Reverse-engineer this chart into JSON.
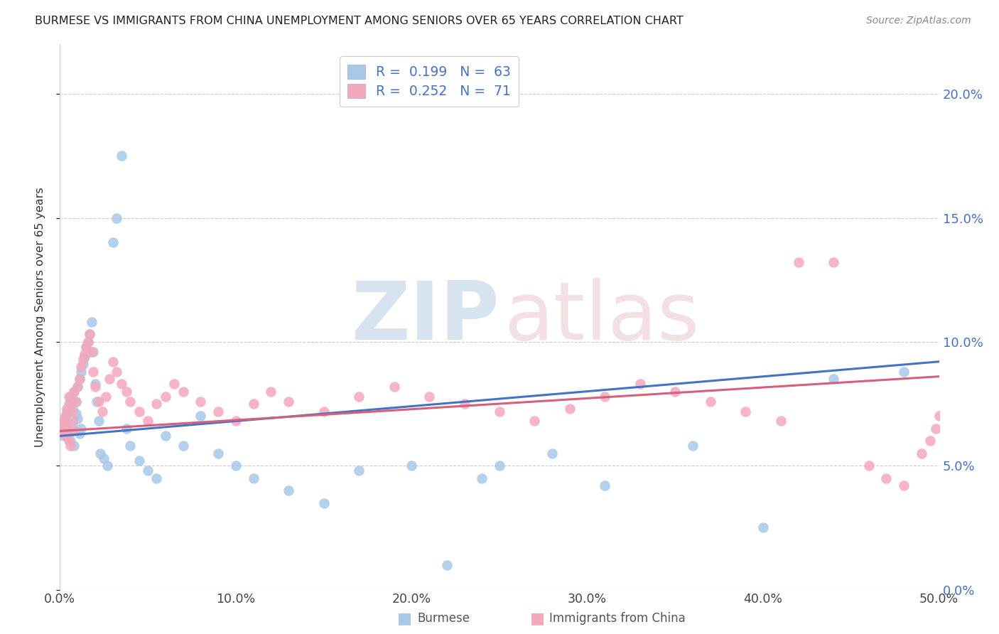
{
  "title": "BURMESE VS IMMIGRANTS FROM CHINA UNEMPLOYMENT AMONG SENIORS OVER 65 YEARS CORRELATION CHART",
  "source": "Source: ZipAtlas.com",
  "ylabel": "Unemployment Among Seniors over 65 years",
  "xmin": 0.0,
  "xmax": 0.5,
  "ymin": 0.0,
  "ymax": 0.22,
  "burmese_color": "#a8c8e8",
  "china_color": "#f4a8bc",
  "burmese_line_color": "#4472c4",
  "china_line_color": "#d4607a",
  "tick_color": "#4472c4",
  "burmese_R": 0.199,
  "burmese_N": 63,
  "china_R": 0.252,
  "china_N": 71,
  "burmese_line_x0": 0.0,
  "burmese_line_y0": 0.062,
  "burmese_line_x1": 0.5,
  "burmese_line_y1": 0.092,
  "china_line_x0": 0.0,
  "china_line_y0": 0.064,
  "china_line_x1": 0.5,
  "china_line_y1": 0.086,
  "burmese_x": [
    0.001,
    0.002,
    0.002,
    0.003,
    0.003,
    0.004,
    0.004,
    0.005,
    0.005,
    0.006,
    0.006,
    0.007,
    0.007,
    0.008,
    0.008,
    0.009,
    0.009,
    0.01,
    0.01,
    0.011,
    0.011,
    0.012,
    0.012,
    0.013,
    0.014,
    0.015,
    0.016,
    0.017,
    0.018,
    0.019,
    0.02,
    0.021,
    0.022,
    0.023,
    0.025,
    0.027,
    0.03,
    0.032,
    0.035,
    0.038,
    0.04,
    0.045,
    0.05,
    0.055,
    0.06,
    0.07,
    0.08,
    0.09,
    0.1,
    0.11,
    0.13,
    0.15,
    0.17,
    0.2,
    0.22,
    0.24,
    0.25,
    0.28,
    0.31,
    0.36,
    0.4,
    0.44,
    0.48
  ],
  "burmese_y": [
    0.065,
    0.068,
    0.062,
    0.07,
    0.066,
    0.072,
    0.064,
    0.075,
    0.063,
    0.078,
    0.06,
    0.073,
    0.067,
    0.08,
    0.058,
    0.071,
    0.076,
    0.082,
    0.069,
    0.085,
    0.063,
    0.088,
    0.065,
    0.091,
    0.094,
    0.098,
    0.1,
    0.103,
    0.108,
    0.096,
    0.083,
    0.076,
    0.068,
    0.055,
    0.053,
    0.05,
    0.14,
    0.15,
    0.175,
    0.065,
    0.058,
    0.052,
    0.048,
    0.045,
    0.062,
    0.058,
    0.07,
    0.055,
    0.05,
    0.045,
    0.04,
    0.035,
    0.048,
    0.05,
    0.01,
    0.045,
    0.05,
    0.055,
    0.042,
    0.058,
    0.025,
    0.085,
    0.088
  ],
  "china_x": [
    0.001,
    0.002,
    0.002,
    0.003,
    0.003,
    0.004,
    0.004,
    0.005,
    0.005,
    0.006,
    0.006,
    0.007,
    0.007,
    0.008,
    0.008,
    0.009,
    0.01,
    0.011,
    0.012,
    0.013,
    0.014,
    0.015,
    0.016,
    0.017,
    0.018,
    0.019,
    0.02,
    0.022,
    0.024,
    0.026,
    0.028,
    0.03,
    0.032,
    0.035,
    0.038,
    0.04,
    0.045,
    0.05,
    0.055,
    0.06,
    0.065,
    0.07,
    0.08,
    0.09,
    0.1,
    0.11,
    0.12,
    0.13,
    0.15,
    0.17,
    0.19,
    0.21,
    0.23,
    0.25,
    0.27,
    0.29,
    0.31,
    0.33,
    0.35,
    0.37,
    0.39,
    0.41,
    0.42,
    0.44,
    0.46,
    0.47,
    0.48,
    0.49,
    0.495,
    0.498,
    0.5
  ],
  "china_y": [
    0.065,
    0.068,
    0.063,
    0.07,
    0.066,
    0.073,
    0.062,
    0.078,
    0.06,
    0.075,
    0.058,
    0.072,
    0.068,
    0.08,
    0.064,
    0.076,
    0.082,
    0.085,
    0.09,
    0.093,
    0.095,
    0.098,
    0.1,
    0.103,
    0.096,
    0.088,
    0.082,
    0.076,
    0.072,
    0.078,
    0.085,
    0.092,
    0.088,
    0.083,
    0.08,
    0.076,
    0.072,
    0.068,
    0.075,
    0.078,
    0.083,
    0.08,
    0.076,
    0.072,
    0.068,
    0.075,
    0.08,
    0.076,
    0.072,
    0.078,
    0.082,
    0.078,
    0.075,
    0.072,
    0.068,
    0.073,
    0.078,
    0.083,
    0.08,
    0.076,
    0.072,
    0.068,
    0.132,
    0.132,
    0.05,
    0.045,
    0.042,
    0.055,
    0.06,
    0.065,
    0.07
  ]
}
